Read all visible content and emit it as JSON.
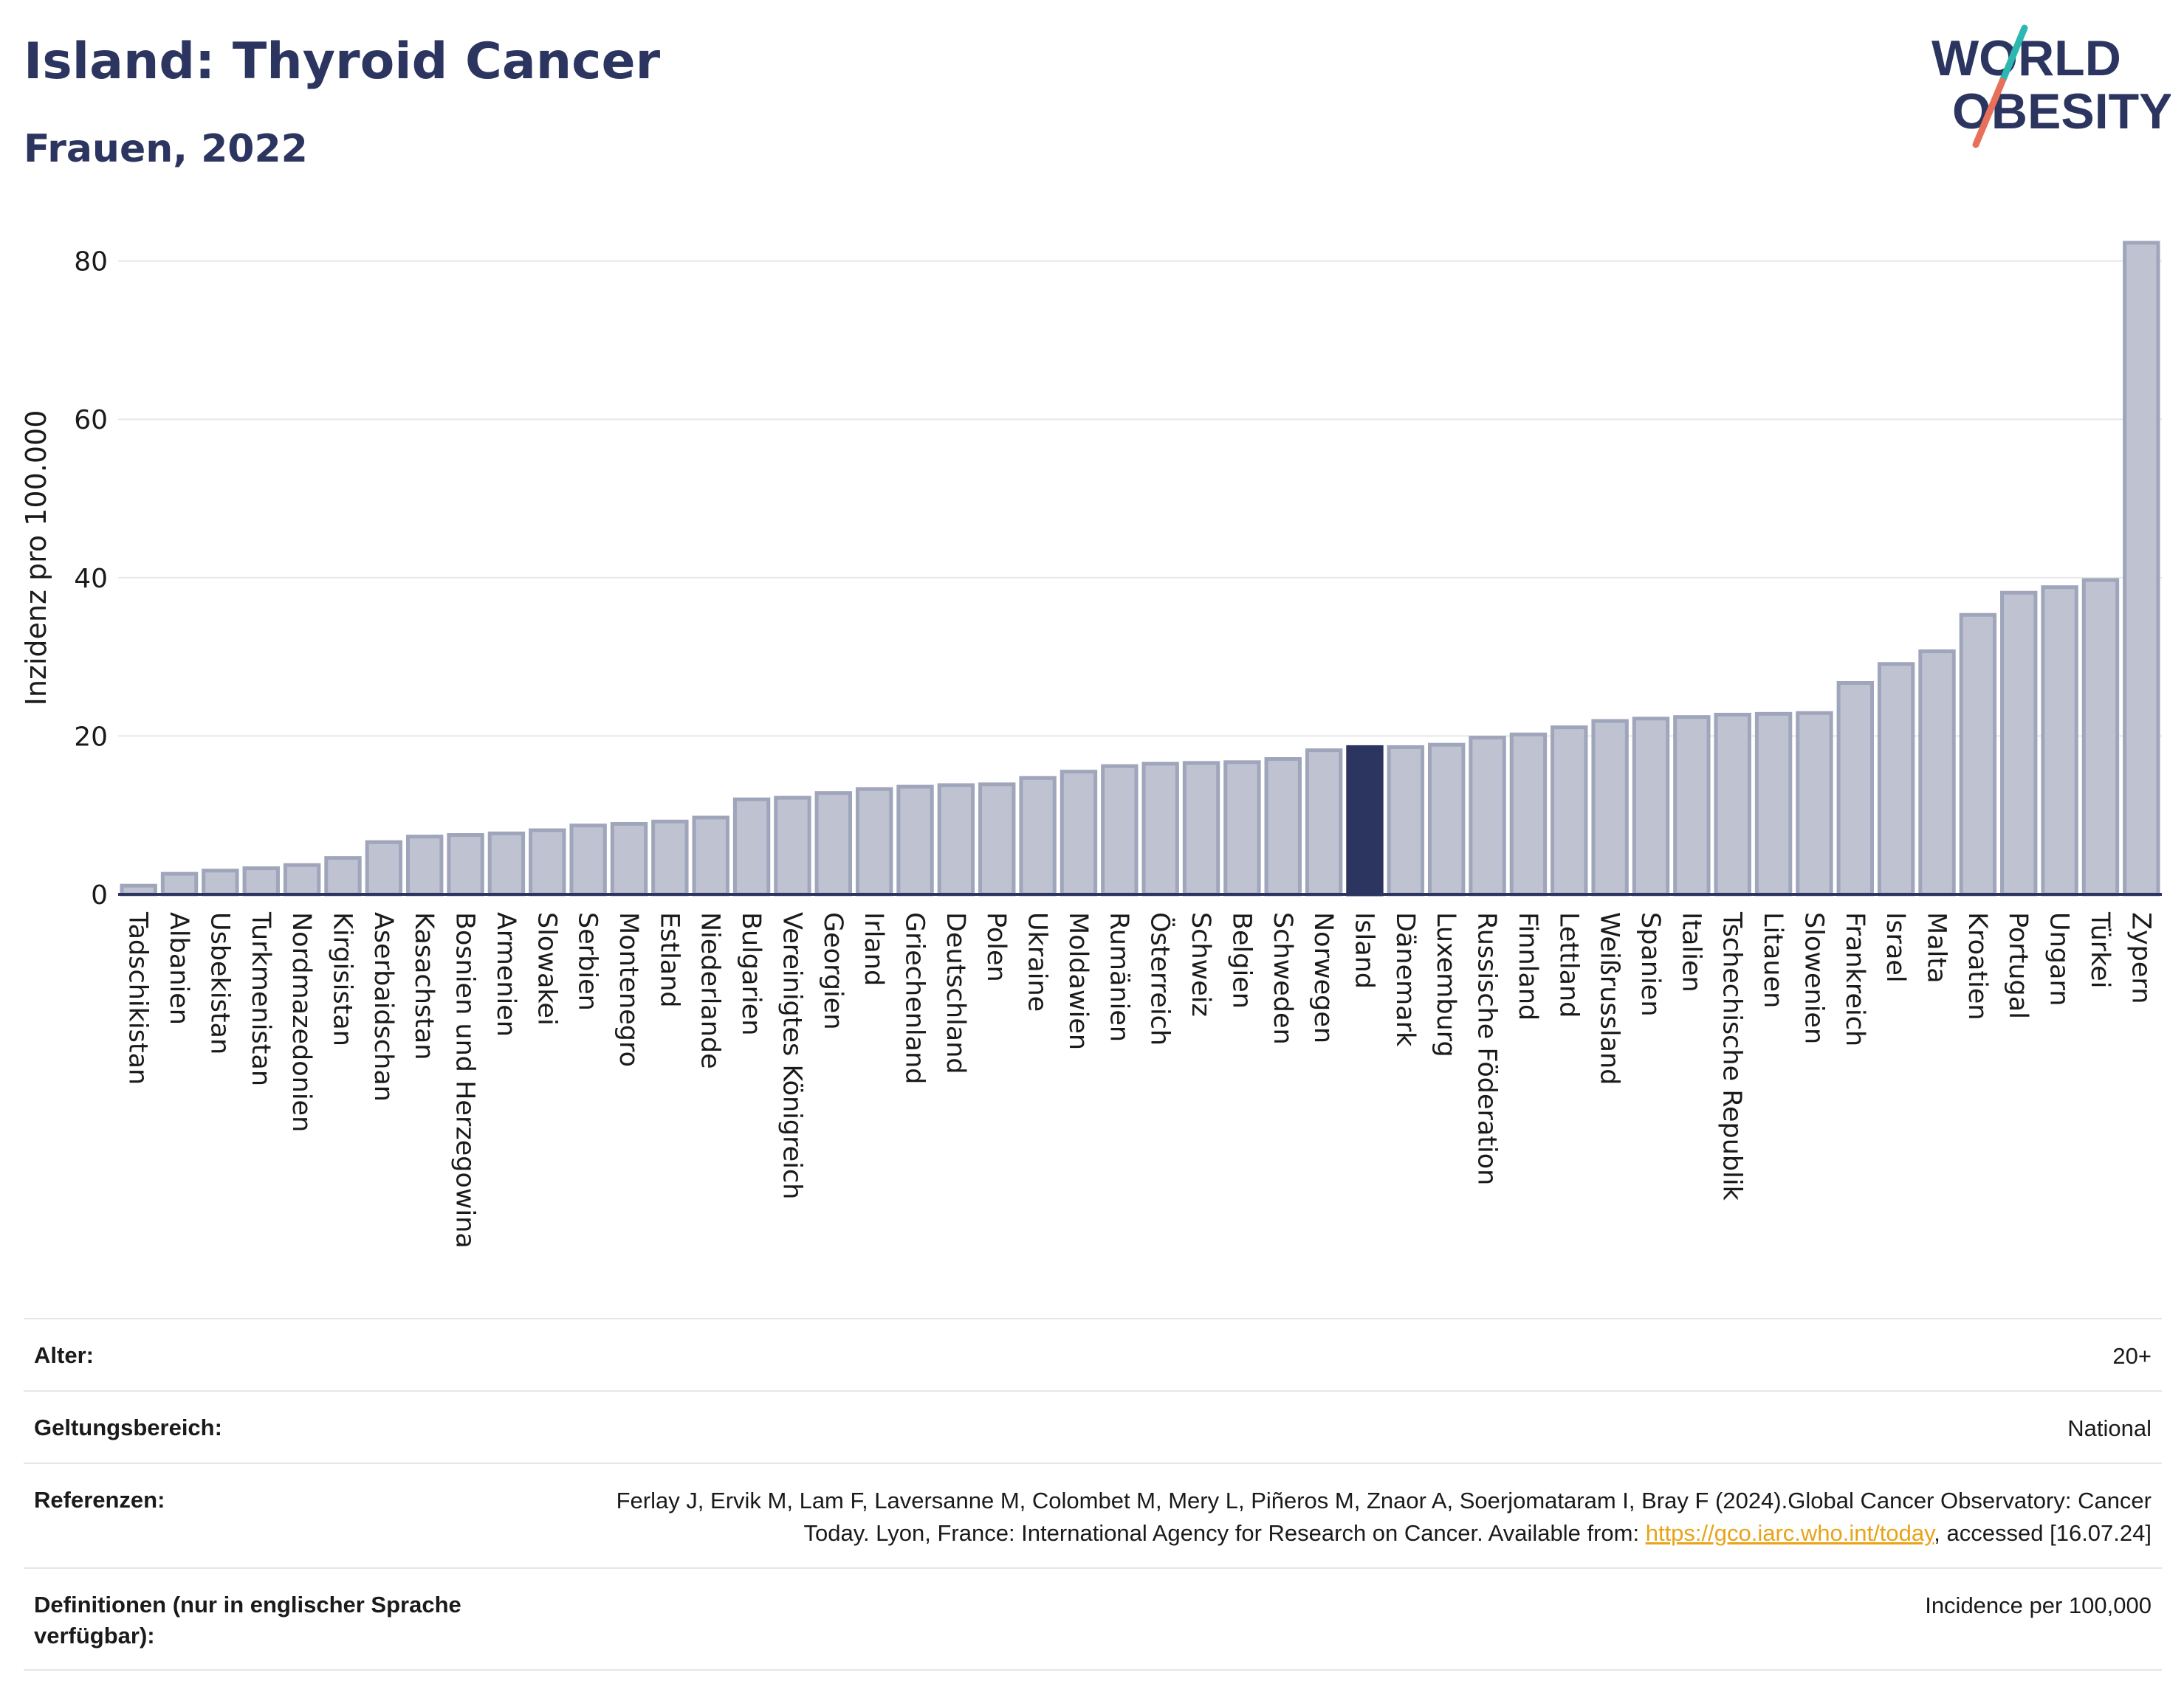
{
  "header": {
    "title": "Island: Thyroid Cancer",
    "subtitle": "Frauen, 2022"
  },
  "logo": {
    "line1": "WORLD",
    "line2": "OBESITY",
    "colors": {
      "text": "#2b3560",
      "slash_top": "#2bb8b0",
      "slash_bottom": "#e8705a"
    }
  },
  "colors": {
    "bar": "#bfc3d1",
    "bar_stroke": "#9fa5ba",
    "highlight": "#2b3560",
    "grid": "#e8e8e8",
    "axis": "#2b3560"
  },
  "chart_data": {
    "type": "bar",
    "ylabel": "Inzidenz pro 100.000",
    "ylim": [
      0,
      85
    ],
    "yticks": [
      0,
      20,
      40,
      60,
      80
    ],
    "grid": true,
    "highlight": "Island",
    "categories": [
      "Tadschikistan",
      "Albanien",
      "Usbekistan",
      "Turkmenistan",
      "Nordmazedonien",
      "Kirgisistan",
      "Aserbaidschan",
      "Kasachstan",
      "Bosnien und Herzegowina",
      "Armenien",
      "Slowakei",
      "Serbien",
      "Montenegro",
      "Estland",
      "Niederlande",
      "Bulgarien",
      "Vereinigtes Königreich",
      "Georgien",
      "Irland",
      "Griechenland",
      "Deutschland",
      "Polen",
      "Ukraine",
      "Moldawien",
      "Rumänien",
      "Österreich",
      "Schweiz",
      "Belgien",
      "Schweden",
      "Norwegen",
      "Island",
      "Dänemark",
      "Luxemburg",
      "Russische Föderation",
      "Finnland",
      "Lettland",
      "Weißrussland",
      "Spanien",
      "Italien",
      "Tschechische Republik",
      "Litauen",
      "Slowenien",
      "Frankreich",
      "Israel",
      "Malta",
      "Kroatien",
      "Portugal",
      "Ungarn",
      "Türkei",
      "Zypern"
    ],
    "values": [
      1.1,
      2.6,
      3.0,
      3.3,
      3.7,
      4.6,
      6.6,
      7.3,
      7.5,
      7.7,
      8.1,
      8.7,
      8.9,
      9.2,
      9.7,
      12.0,
      12.2,
      12.8,
      13.3,
      13.6,
      13.8,
      13.9,
      14.7,
      15.5,
      16.2,
      16.5,
      16.6,
      16.7,
      17.1,
      18.2,
      18.6,
      18.6,
      18.9,
      19.8,
      20.2,
      21.1,
      21.9,
      22.2,
      22.4,
      22.7,
      22.8,
      22.9,
      26.7,
      29.1,
      30.7,
      35.3,
      38.1,
      38.8,
      39.7,
      82.3
    ]
  },
  "meta": {
    "age_label": "Alter:",
    "age_value": "20+",
    "scope_label": "Geltungsbereich:",
    "scope_value": "National",
    "ref_label": "Referenzen:",
    "ref_text": "Ferlay J, Ervik M, Lam F, Laversanne M, Colombet M, Mery L, Piñeros M, Znaor A, Soerjomataram I, Bray F (2024).Global Cancer Observatory: Cancer Today. Lyon, France: International Agency for Research on Cancer. Available from: ",
    "ref_link": "https://gco.iarc.who.int/today",
    "ref_tail": ", accessed [16.07.24]",
    "def_label": "Definitionen (nur in englischer Sprache verfügbar):",
    "def_value": "Incidence per 100,000"
  }
}
